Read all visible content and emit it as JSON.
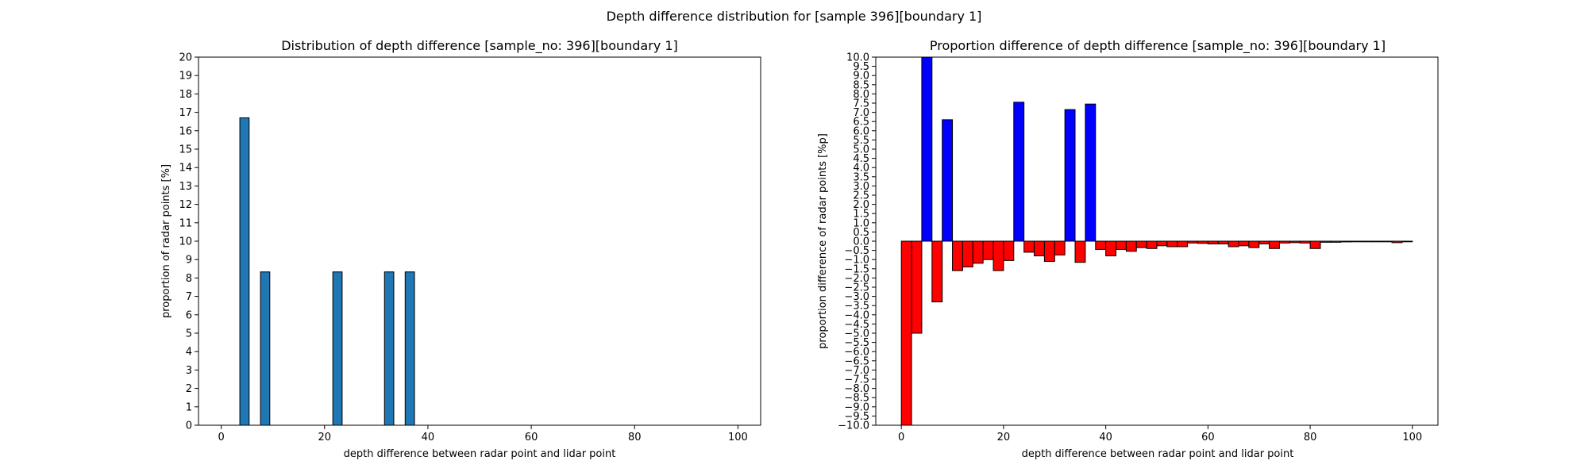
{
  "figure_title": "Depth difference distribution for [sample 396][boundary 1]",
  "chart_data": [
    {
      "type": "bar",
      "title": "Distribution of depth difference [sample_no: 396][boundary 1]",
      "xlabel": "depth difference between radar point and lidar point",
      "ylabel": "proportion of radar points [%]",
      "xlim": [
        -4.4,
        104.4
      ],
      "ylim": [
        0,
        20
      ],
      "xticks": [
        0,
        20,
        40,
        60,
        80,
        100
      ],
      "yticks": [
        0,
        1,
        2,
        3,
        4,
        5,
        6,
        7,
        8,
        9,
        10,
        11,
        12,
        13,
        14,
        15,
        16,
        17,
        18,
        19,
        20
      ],
      "bar_width": 1.8,
      "color": "#1f77b4",
      "x": [
        4.5,
        8.5,
        22.5,
        32.5,
        36.5
      ],
      "values": [
        16.7,
        8.33,
        8.33,
        8.33,
        8.33
      ]
    },
    {
      "type": "bar",
      "title": "Proportion difference of depth difference [sample_no: 396][boundary 1]",
      "xlabel": "depth difference between radar point and lidar point",
      "ylabel": "proportion difference of radar points [%p]",
      "xlim": [
        -5,
        105
      ],
      "ylim": [
        -10,
        10
      ],
      "xticks": [
        0,
        20,
        40,
        60,
        80,
        100
      ],
      "ytick_step": 0.5,
      "bar_width": 2,
      "positive_color": "#0000ff",
      "negative_color": "#ff0000",
      "x": [
        1,
        3,
        5,
        7,
        9,
        11,
        13,
        15,
        17,
        19,
        21,
        23,
        25,
        27,
        29,
        31,
        33,
        35,
        37,
        39,
        41,
        43,
        45,
        47,
        49,
        51,
        53,
        55,
        57,
        59,
        61,
        63,
        65,
        67,
        69,
        71,
        73,
        75,
        77,
        79,
        81,
        83,
        85,
        87,
        89,
        91,
        93,
        95,
        97,
        99
      ],
      "values": [
        -10.0,
        -5.0,
        10.0,
        -3.3,
        6.6,
        -1.6,
        -1.4,
        -1.2,
        -1.0,
        -1.6,
        -1.05,
        7.55,
        -0.6,
        -0.8,
        -1.1,
        -0.75,
        7.15,
        -1.15,
        7.45,
        -0.45,
        -0.8,
        -0.45,
        -0.55,
        -0.35,
        -0.4,
        -0.25,
        -0.3,
        -0.3,
        -0.1,
        -0.12,
        -0.15,
        -0.15,
        -0.3,
        -0.25,
        -0.35,
        -0.15,
        -0.4,
        -0.1,
        -0.08,
        -0.1,
        -0.4,
        -0.06,
        -0.06,
        -0.04,
        -0.02,
        -0.02,
        -0.02,
        -0.02,
        -0.08,
        -0.03
      ]
    }
  ]
}
